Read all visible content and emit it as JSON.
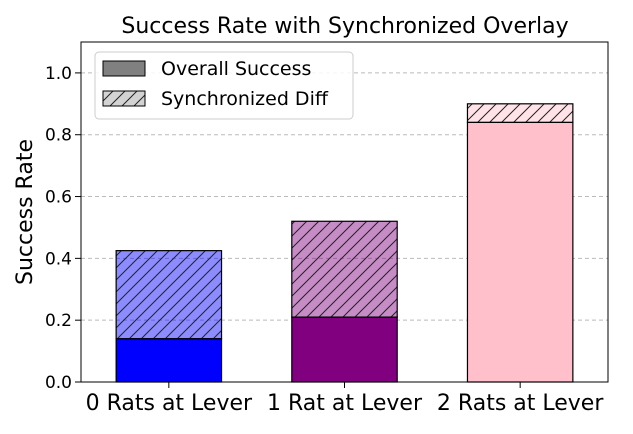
{
  "chart_data": {
    "type": "bar",
    "title": "Success Rate with Synchronized Overlay",
    "xlabel": "",
    "ylabel": "Success Rate",
    "ylim": [
      0,
      1.1
    ],
    "yticks": [
      0.0,
      0.2,
      0.4,
      0.6,
      0.8,
      1.0
    ],
    "ytick_labels": [
      "0.0",
      "0.2",
      "0.4",
      "0.6",
      "0.8",
      "1.0"
    ],
    "grid": "y-dashed",
    "legend_position": "top-left",
    "categories": [
      "0 Rats at Lever",
      "1 Rat at Lever",
      "2 Rats at Lever"
    ],
    "colors": [
      "#0000ff",
      "#800080",
      "#ffc0cb"
    ],
    "series": [
      {
        "name": "Overall Success",
        "values": [
          0.14,
          0.21,
          0.84
        ]
      },
      {
        "name": "Synchronized Diff",
        "values": [
          0.285,
          0.31,
          0.06
        ],
        "stacked_on": "Overall Success",
        "style": "hatched"
      }
    ],
    "legend": [
      {
        "label": "Overall Success",
        "swatch": "#808080",
        "hatch": false
      },
      {
        "label": "Synchronized Diff",
        "swatch": "#d3d3d3",
        "hatch": true
      }
    ]
  }
}
